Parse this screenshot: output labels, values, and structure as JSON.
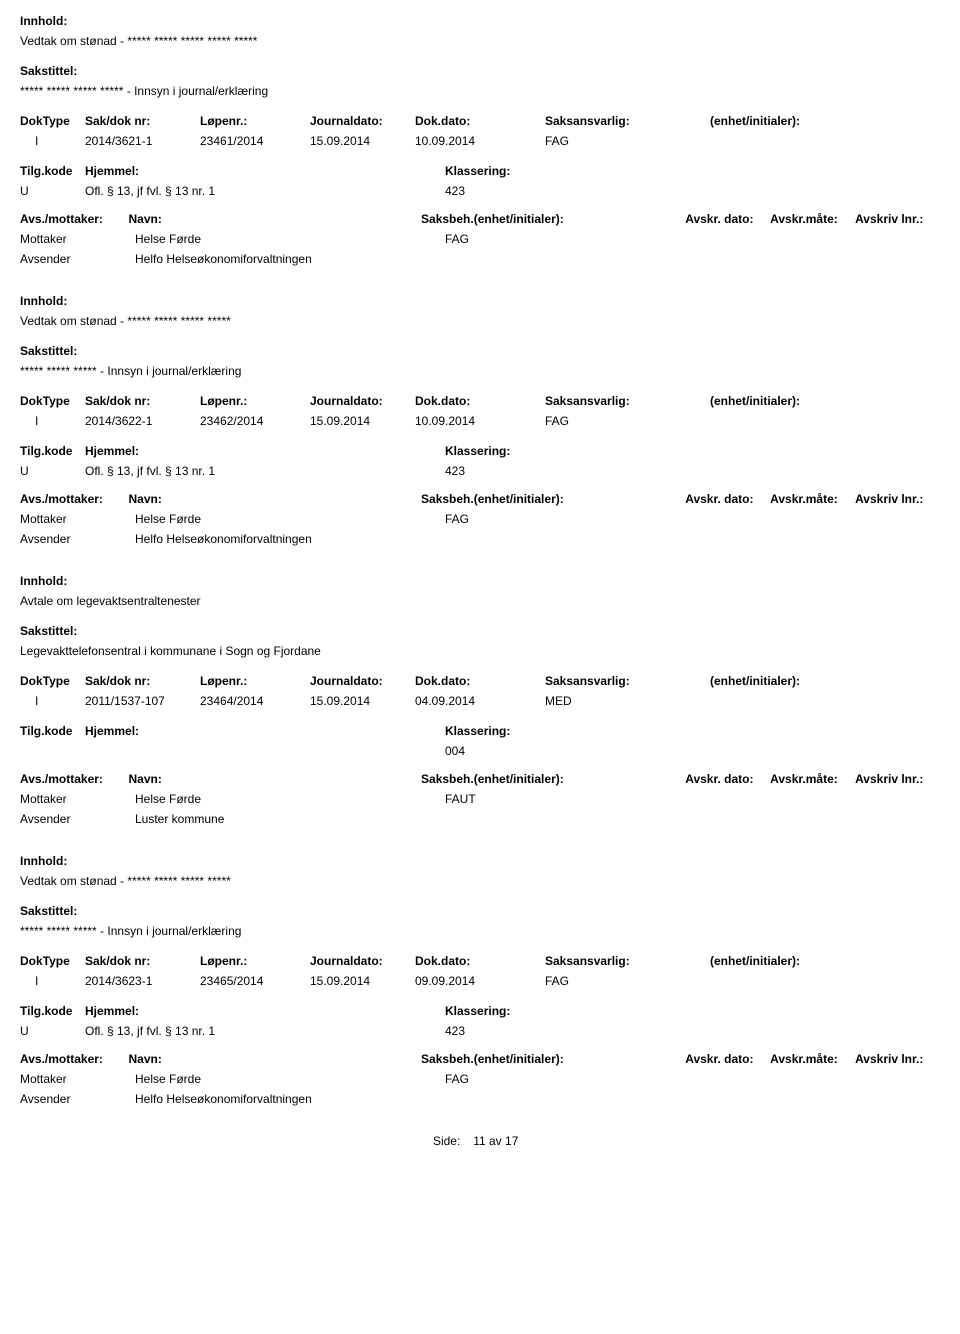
{
  "labels": {
    "innhold": "Innhold:",
    "sakstittel": "Sakstittel:",
    "doktype": "DokType",
    "sakdok": "Sak/dok nr:",
    "lopenr": "Løpenr.:",
    "journaldato": "Journaldato:",
    "dokdato": "Dok.dato:",
    "saksansvarlig": "Saksansvarlig:",
    "enhet": "(enhet/initialer):",
    "tilgkode": "Tilg.kode",
    "hjemmel": "Hjemmel:",
    "klassering": "Klassering:",
    "avsmottaker": "Avs./mottaker:",
    "navn": "Navn:",
    "saksbeh": "Saksbeh.(enhet/initialer):",
    "avskrdato": "Avskr. dato:",
    "avskrmate": "Avskr.måte:",
    "avskrivlnr": "Avskriv lnr.:",
    "mottaker": "Mottaker",
    "avsender": "Avsender",
    "side": "Side:",
    "av": "av"
  },
  "footer": {
    "page_current": "11",
    "page_total": "17"
  },
  "entries": [
    {
      "innhold": "Vedtak om stønad - ***** ***** ***** ***** *****",
      "sakstittel": "***** ***** ***** ***** - Innsyn i journal/erklæring",
      "doktype": "I",
      "sakdok": "2014/3621-1",
      "lopenr": "23461/2014",
      "journaldato": "15.09.2014",
      "dokdato": "10.09.2014",
      "saksansvarlig": "FAG",
      "enhet": "",
      "tilgkode": "U",
      "hjemmel": "Ofl. § 13, jf fvl. § 13 nr. 1",
      "klassering": "423",
      "parties": [
        {
          "role": "Mottaker",
          "name": "Helse Førde",
          "saksbeh": "FAG"
        },
        {
          "role": "Avsender",
          "name": "Helfo Helseøkonomiforvaltningen",
          "saksbeh": ""
        }
      ]
    },
    {
      "innhold": "Vedtak om stønad - ***** ***** ***** *****",
      "sakstittel": "***** ***** ***** - Innsyn i journal/erklæring",
      "doktype": "I",
      "sakdok": "2014/3622-1",
      "lopenr": "23462/2014",
      "journaldato": "15.09.2014",
      "dokdato": "10.09.2014",
      "saksansvarlig": "FAG",
      "enhet": "",
      "tilgkode": "U",
      "hjemmel": "Ofl. § 13, jf fvl. § 13 nr. 1",
      "klassering": "423",
      "parties": [
        {
          "role": "Mottaker",
          "name": "Helse Førde",
          "saksbeh": "FAG"
        },
        {
          "role": "Avsender",
          "name": "Helfo Helseøkonomiforvaltningen",
          "saksbeh": ""
        }
      ]
    },
    {
      "innhold": "Avtale om legevaktsentraltenester",
      "sakstittel": "Legevakttelefonsentral i kommunane i Sogn og Fjordane",
      "doktype": "I",
      "sakdok": "2011/1537-107",
      "lopenr": "23464/2014",
      "journaldato": "15.09.2014",
      "dokdato": "04.09.2014",
      "saksansvarlig": "MED",
      "enhet": "",
      "tilgkode": "",
      "hjemmel": "",
      "klassering": "004",
      "parties": [
        {
          "role": "Mottaker",
          "name": "Helse Førde",
          "saksbeh": "FAUT"
        },
        {
          "role": "Avsender",
          "name": "Luster kommune",
          "saksbeh": ""
        }
      ]
    },
    {
      "innhold": "Vedtak om stønad - ***** ***** ***** *****",
      "sakstittel": "***** ***** ***** - Innsyn i journal/erklæring",
      "doktype": "I",
      "sakdok": "2014/3623-1",
      "lopenr": "23465/2014",
      "journaldato": "15.09.2014",
      "dokdato": "09.09.2014",
      "saksansvarlig": "FAG",
      "enhet": "",
      "tilgkode": "U",
      "hjemmel": "Ofl. § 13, jf fvl. § 13 nr. 1",
      "klassering": "423",
      "parties": [
        {
          "role": "Mottaker",
          "name": "Helse Førde",
          "saksbeh": "FAG"
        },
        {
          "role": "Avsender",
          "name": "Helfo Helseøkonomiforvaltningen",
          "saksbeh": ""
        }
      ]
    }
  ]
}
